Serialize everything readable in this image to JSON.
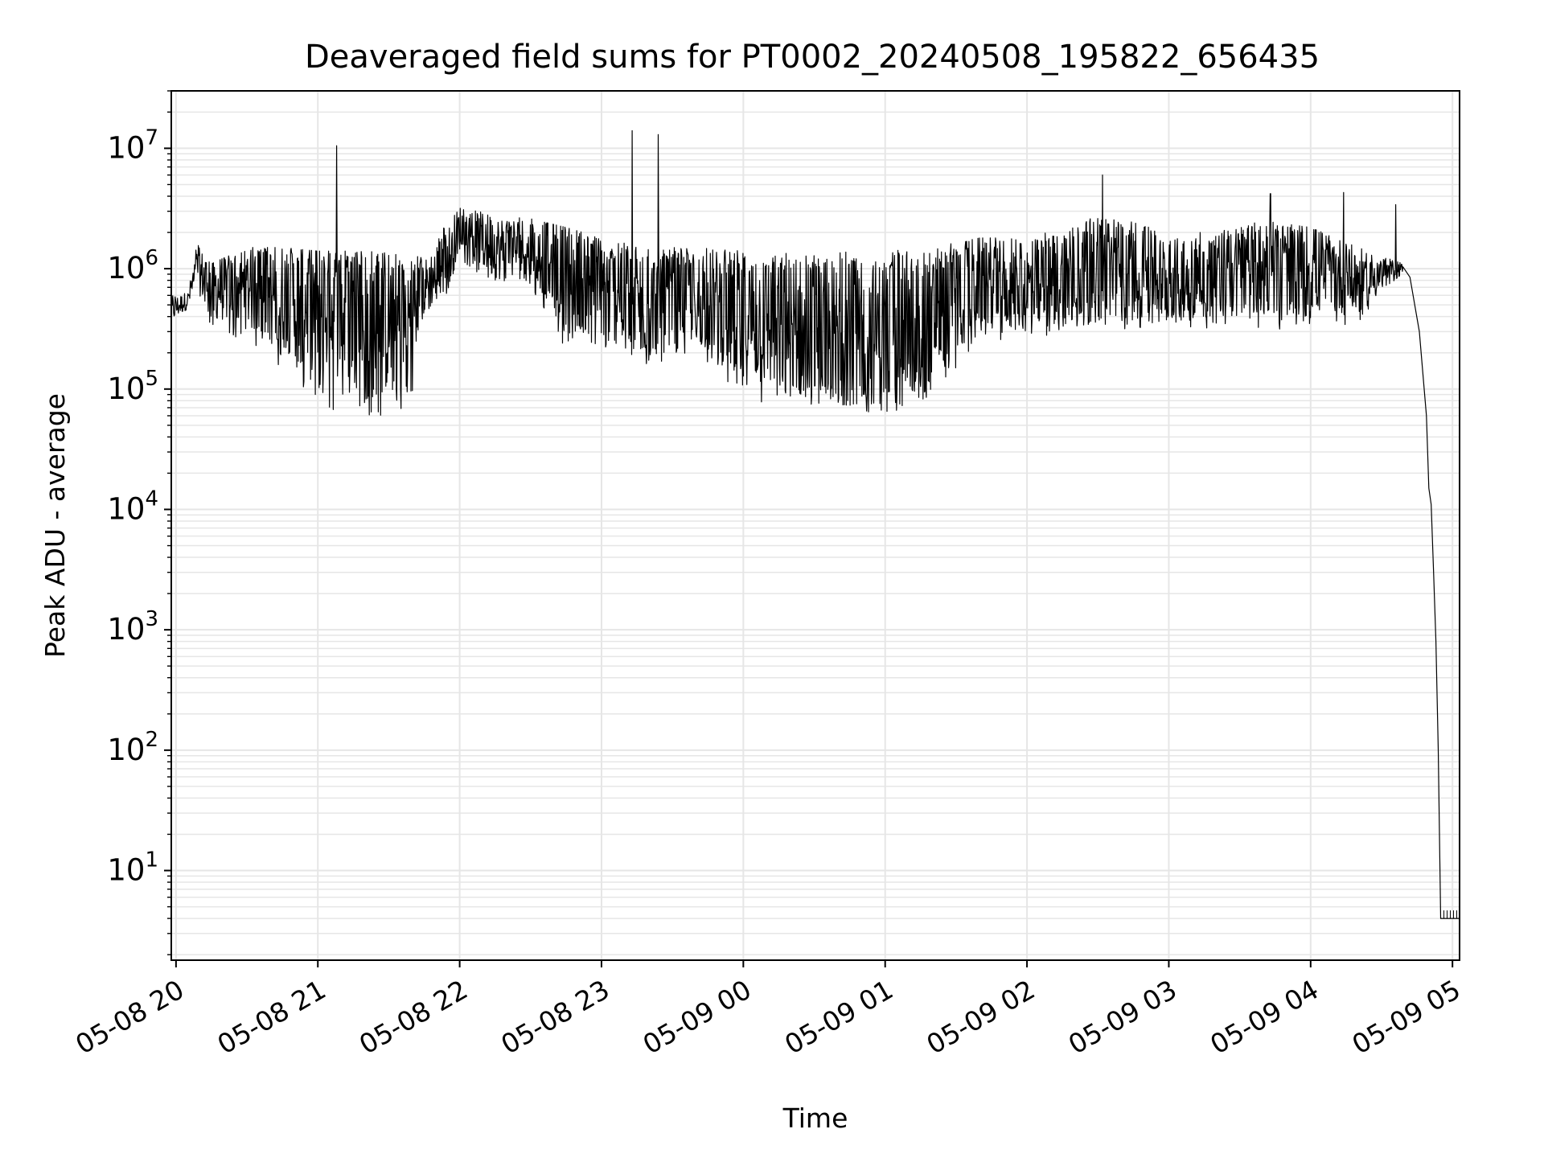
{
  "chart_data": {
    "type": "line",
    "title": "Deaveraged field sums for PT0002_20240508_195822_656435",
    "xlabel": "Time",
    "ylabel": "Peak ADU - average",
    "yscale": "log",
    "xlim": [
      "2024-05-08 19:58",
      "2024-05-09 05:03"
    ],
    "ylim": [
      1.8,
      30000000
    ],
    "grid": true,
    "line_color": "#000000",
    "grid_color": "#e6e6e6",
    "x_tick_labels": [
      {
        "t": "2024-05-08 20:00",
        "label": "05-08 20"
      },
      {
        "t": "2024-05-08 21:00",
        "label": "05-08 21"
      },
      {
        "t": "2024-05-08 22:00",
        "label": "05-08 22"
      },
      {
        "t": "2024-05-08 23:00",
        "label": "05-08 23"
      },
      {
        "t": "2024-05-09 00:00",
        "label": "05-09 00"
      },
      {
        "t": "2024-05-09 01:00",
        "label": "05-09 01"
      },
      {
        "t": "2024-05-09 02:00",
        "label": "05-09 02"
      },
      {
        "t": "2024-05-09 03:00",
        "label": "05-09 03"
      },
      {
        "t": "2024-05-09 04:00",
        "label": "05-09 04"
      },
      {
        "t": "2024-05-09 05:00",
        "label": "05-09 05"
      }
    ],
    "y_tick_labels": [
      {
        "value": 10,
        "base": "10",
        "exp": "1"
      },
      {
        "value": 100,
        "base": "10",
        "exp": "2"
      },
      {
        "value": 1000,
        "base": "10",
        "exp": "3"
      },
      {
        "value": 10000,
        "base": "10",
        "exp": "4"
      },
      {
        "value": 100000,
        "base": "10",
        "exp": "5"
      },
      {
        "value": 1000000,
        "base": "10",
        "exp": "6"
      },
      {
        "value": 10000000,
        "base": "10",
        "exp": "7"
      }
    ],
    "series": [
      {
        "style": "noisy-envelope",
        "color": "#000000",
        "envelope": [
          {
            "t": "2024-05-08 19:58",
            "mid": 450000,
            "hi": 600000,
            "lo": 350000
          },
          {
            "t": "2024-05-08 20:05",
            "mid": 550000,
            "hi": 650000,
            "lo": 450000
          },
          {
            "t": "2024-05-08 20:09",
            "mid": 1000000,
            "hi": 1800000,
            "lo": 700000
          },
          {
            "t": "2024-05-08 20:15",
            "mid": 700000,
            "hi": 1100000,
            "lo": 300000
          },
          {
            "t": "2024-05-08 20:30",
            "mid": 700000,
            "hi": 1500000,
            "lo": 250000
          },
          {
            "t": "2024-05-08 20:45",
            "mid": 600000,
            "hi": 1500000,
            "lo": 150000
          },
          {
            "t": "2024-05-08 21:00",
            "mid": 500000,
            "hi": 1400000,
            "lo": 70000
          },
          {
            "t": "2024-05-08 21:20",
            "mid": 400000,
            "hi": 1400000,
            "lo": 60000
          },
          {
            "t": "2024-05-08 21:38",
            "mid": 350000,
            "hi": 1300000,
            "lo": 55000
          },
          {
            "t": "2024-05-08 21:45",
            "mid": 700000,
            "hi": 1300000,
            "lo": 400000
          },
          {
            "t": "2024-05-08 21:55",
            "mid": 1200000,
            "hi": 2500000,
            "lo": 600000
          },
          {
            "t": "2024-05-08 22:00",
            "mid": 2200000,
            "hi": 3200000,
            "lo": 1200000
          },
          {
            "t": "2024-05-08 22:15",
            "mid": 1500000,
            "hi": 2800000,
            "lo": 700000
          },
          {
            "t": "2024-05-08 22:30",
            "mid": 1500000,
            "hi": 2600000,
            "lo": 700000
          },
          {
            "t": "2024-05-08 22:45",
            "mid": 1000000,
            "hi": 2200000,
            "lo": 200000
          },
          {
            "t": "2024-05-08 23:00",
            "mid": 700000,
            "hi": 1800000,
            "lo": 200000
          },
          {
            "t": "2024-05-08 23:20",
            "mid": 500000,
            "hi": 1500000,
            "lo": 150000
          },
          {
            "t": "2024-05-08 23:40",
            "mid": 600000,
            "hi": 1500000,
            "lo": 200000
          },
          {
            "t": "2024-05-09 00:00",
            "mid": 400000,
            "hi": 1400000,
            "lo": 80000
          },
          {
            "t": "2024-05-09 00:30",
            "mid": 300000,
            "hi": 1400000,
            "lo": 60000
          },
          {
            "t": "2024-05-09 01:00",
            "mid": 300000,
            "hi": 1400000,
            "lo": 60000
          },
          {
            "t": "2024-05-09 01:20",
            "mid": 400000,
            "hi": 1500000,
            "lo": 80000
          },
          {
            "t": "2024-05-09 01:40",
            "mid": 800000,
            "hi": 1800000,
            "lo": 250000
          },
          {
            "t": "2024-05-09 02:00",
            "mid": 700000,
            "hi": 1800000,
            "lo": 250000
          },
          {
            "t": "2024-05-09 02:20",
            "mid": 900000,
            "hi": 2500000,
            "lo": 300000
          },
          {
            "t": "2024-05-09 02:40",
            "mid": 1000000,
            "hi": 2800000,
            "lo": 300000
          },
          {
            "t": "2024-05-09 03:00",
            "mid": 800000,
            "hi": 2000000,
            "lo": 350000
          },
          {
            "t": "2024-05-09 03:20",
            "mid": 900000,
            "hi": 2000000,
            "lo": 300000
          },
          {
            "t": "2024-05-09 03:40",
            "mid": 1000000,
            "hi": 2500000,
            "lo": 300000
          },
          {
            "t": "2024-05-09 04:00",
            "mid": 1000000,
            "hi": 2200000,
            "lo": 300000
          },
          {
            "t": "2024-05-09 04:20",
            "mid": 800000,
            "hi": 1500000,
            "lo": 350000
          },
          {
            "t": "2024-05-09 04:39",
            "mid": 1000000,
            "hi": 1100000,
            "lo": 900000
          }
        ],
        "points": [
          {
            "t": "2024-05-09 04:42",
            "v": 850000
          },
          {
            "t": "2024-05-09 04:46",
            "v": 300000
          },
          {
            "t": "2024-05-09 04:49",
            "v": 60000
          },
          {
            "t": "2024-05-09 04:50",
            "v": 15000
          },
          {
            "t": "2024-05-09 04:51",
            "v": 11000
          },
          {
            "t": "2024-05-09 04:52",
            "v": 3000
          },
          {
            "t": "2024-05-09 04:53",
            "v": 800
          },
          {
            "t": "2024-05-09 04:54",
            "v": 100
          },
          {
            "t": "2024-05-09 04:55",
            "v": 4
          },
          {
            "t": "2024-05-09 05:03",
            "v": 4
          }
        ],
        "spikes": [
          {
            "t": "2024-05-08 21:08",
            "v": 10500000
          },
          {
            "t": "2024-05-08 23:13",
            "v": 14000000
          },
          {
            "t": "2024-05-08 23:24",
            "v": 13000000
          },
          {
            "t": "2024-05-09 02:32",
            "v": 6000000
          },
          {
            "t": "2024-05-09 03:43",
            "v": 4200000
          },
          {
            "t": "2024-05-09 04:14",
            "v": 4300000
          },
          {
            "t": "2024-05-09 04:36",
            "v": 3400000
          }
        ]
      }
    ]
  }
}
